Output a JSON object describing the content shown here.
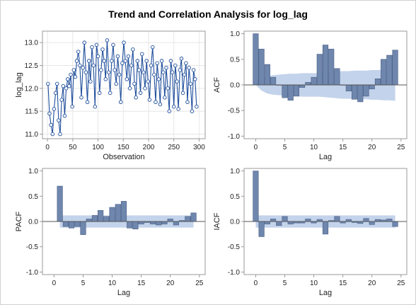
{
  "title": "Trend and Correlation Analysis for log_lag",
  "colors": {
    "bar_fill": "#6f86ad",
    "bar_stroke": "#4a5f86",
    "band": "#b8cbe8",
    "series_line": "#1f4e9c",
    "grid": "#e6e6e6",
    "axis": "#9a9a9a"
  },
  "chart_data": [
    {
      "type": "line",
      "id": "trend",
      "title": "",
      "xlabel": "Observation",
      "ylabel": "log_lag",
      "xlim": [
        -10,
        312
      ],
      "ylim": [
        10.9,
        13.25
      ],
      "xticks": [
        0,
        50,
        100,
        150,
        200,
        250,
        300
      ],
      "yticks": [
        11.0,
        11.5,
        12.0,
        12.5,
        13.0
      ],
      "ytick_labels": [
        "11.0",
        "11.5",
        "12.0",
        "12.5",
        "13.0"
      ],
      "grid": true,
      "markers": "open-circle",
      "x_start": 1,
      "x_step": 3,
      "y": [
        12.1,
        11.45,
        11.2,
        11.0,
        11.55,
        11.9,
        12.1,
        11.3,
        11.0,
        11.75,
        12.05,
        11.4,
        12.0,
        12.2,
        12.05,
        12.3,
        11.6,
        12.4,
        12.25,
        12.6,
        12.8,
        12.5,
        11.8,
        12.45,
        13.0,
        12.35,
        11.7,
        12.6,
        12.15,
        12.9,
        12.5,
        11.6,
        12.95,
        12.7,
        11.9,
        12.4,
        12.85,
        12.6,
        12.2,
        13.05,
        12.35,
        11.9,
        12.6,
        12.95,
        12.4,
        12.1,
        12.7,
        12.3,
        11.7,
        12.55,
        13.0,
        12.6,
        12.2,
        12.7,
        12.0,
        12.5,
        12.85,
        12.1,
        11.8,
        12.6,
        12.4,
        11.9,
        12.75,
        12.35,
        12.0,
        12.6,
        12.15,
        11.75,
        12.5,
        12.9,
        12.3,
        11.7,
        12.55,
        12.2,
        11.65,
        12.6,
        12.35,
        11.8,
        12.45,
        12.0,
        11.5,
        12.6,
        12.35,
        11.6,
        12.5,
        12.15,
        11.55,
        12.4,
        12.65,
        11.9,
        12.3,
        12.55,
        11.7,
        12.45,
        12.1,
        11.5,
        12.4,
        12.2,
        11.6
      ]
    },
    {
      "type": "bar",
      "id": "acf",
      "ylabel": "ACF",
      "xlabel": "Lag",
      "xlim": [
        -2,
        26
      ],
      "ylim": [
        -1.05,
        1.05
      ],
      "xticks": [
        0,
        5,
        10,
        15,
        20,
        25
      ],
      "yticks": [
        -1.0,
        -0.5,
        0.0,
        0.5,
        1.0
      ],
      "ytick_labels": [
        "-1.0",
        "-0.5",
        "0.0",
        "0.5",
        "1.0"
      ],
      "lags": [
        0,
        1,
        2,
        3,
        4,
        5,
        6,
        7,
        8,
        9,
        10,
        11,
        12,
        13,
        14,
        15,
        16,
        17,
        18,
        19,
        20,
        21,
        22,
        23,
        24
      ],
      "values": [
        1.0,
        0.7,
        0.4,
        0.15,
        0.0,
        -0.25,
        -0.3,
        -0.22,
        -0.05,
        0.05,
        0.15,
        0.6,
        0.78,
        0.7,
        0.32,
        0.0,
        -0.12,
        -0.28,
        -0.33,
        -0.22,
        -0.08,
        0.12,
        0.5,
        0.58,
        0.68
      ],
      "band_upper": [
        0.0,
        0.11,
        0.17,
        0.19,
        0.2,
        0.21,
        0.22,
        0.22,
        0.23,
        0.23,
        0.23,
        0.23,
        0.24,
        0.25,
        0.26,
        0.27,
        0.27,
        0.28,
        0.28,
        0.28,
        0.29,
        0.29,
        0.3,
        0.3,
        0.31
      ],
      "band_lower": [
        0.0,
        -0.11,
        -0.17,
        -0.19,
        -0.2,
        -0.21,
        -0.22,
        -0.22,
        -0.23,
        -0.23,
        -0.23,
        -0.23,
        -0.24,
        -0.25,
        -0.26,
        -0.27,
        -0.27,
        -0.28,
        -0.28,
        -0.28,
        -0.29,
        -0.29,
        -0.3,
        -0.3,
        -0.31
      ]
    },
    {
      "type": "bar",
      "id": "pacf",
      "ylabel": "PACF",
      "xlabel": "Lag",
      "xlim": [
        -2,
        26
      ],
      "ylim": [
        -1.05,
        1.05
      ],
      "xticks": [
        0,
        5,
        10,
        15,
        20,
        25
      ],
      "yticks": [
        -1.0,
        -0.5,
        0.0,
        0.5,
        1.0
      ],
      "ytick_labels": [
        "-1.0",
        "-0.5",
        "0.0",
        "0.5",
        "1.0"
      ],
      "lags": [
        1,
        2,
        3,
        4,
        5,
        6,
        7,
        8,
        9,
        10,
        11,
        12,
        13,
        14,
        15,
        16,
        17,
        18,
        19,
        20,
        21,
        22,
        23,
        24
      ],
      "values": [
        0.7,
        -0.1,
        -0.13,
        -0.1,
        -0.26,
        0.05,
        0.12,
        0.22,
        0.1,
        0.28,
        0.34,
        0.4,
        -0.13,
        -0.15,
        -0.05,
        -0.02,
        -0.05,
        -0.07,
        -0.05,
        0.05,
        -0.07,
        0.02,
        0.1,
        0.17
      ],
      "band_upper": 0.12,
      "band_lower": -0.12
    },
    {
      "type": "bar",
      "id": "iacf",
      "ylabel": "IACF",
      "xlabel": "Lag",
      "xlim": [
        -2,
        26
      ],
      "ylim": [
        -1.05,
        1.05
      ],
      "xticks": [
        0,
        5,
        10,
        15,
        20,
        25
      ],
      "yticks": [
        -1.0,
        -0.5,
        0.0,
        0.5,
        1.0
      ],
      "ytick_labels": [
        "-1.0",
        "-0.5",
        "0.0",
        "0.5",
        "1.0"
      ],
      "lags": [
        0,
        1,
        2,
        3,
        4,
        5,
        6,
        7,
        8,
        9,
        10,
        11,
        12,
        13,
        14,
        15,
        16,
        17,
        18,
        19,
        20,
        21,
        22,
        23,
        24
      ],
      "values": [
        1.0,
        -0.3,
        -0.05,
        0.05,
        -0.08,
        0.1,
        -0.05,
        -0.03,
        -0.03,
        0.05,
        -0.03,
        0.04,
        -0.25,
        0.02,
        0.1,
        -0.03,
        0.04,
        -0.02,
        -0.04,
        0.06,
        -0.06,
        0.04,
        0.03,
        0.05,
        -0.1
      ],
      "band_upper": 0.12,
      "band_lower": -0.12
    }
  ]
}
